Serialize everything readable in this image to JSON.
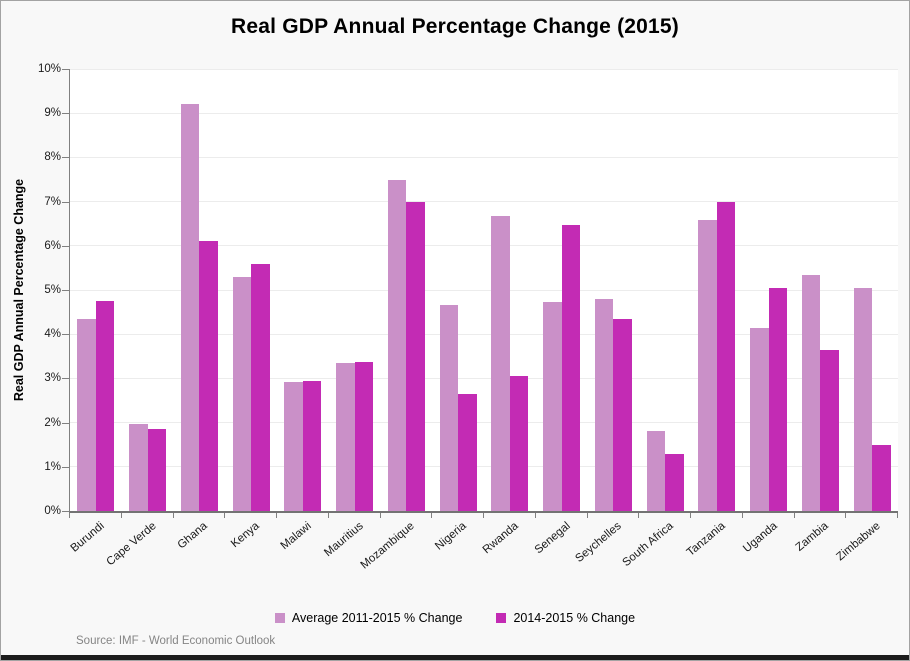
{
  "title": "Real GDP Annual Percentage Change (2015)",
  "source_note": "Source: IMF - World Economic Outlook",
  "chart_data": {
    "type": "bar",
    "title": "Real GDP Annual Percentage Change (2015)",
    "xlabel": "",
    "ylabel": "Real GDP Annual Percentage Change",
    "ylim": [
      0,
      10
    ],
    "yticks": [
      "0%",
      "1%",
      "2%",
      "3%",
      "4%",
      "5%",
      "6%",
      "7%",
      "8%",
      "9%",
      "10%"
    ],
    "grid": true,
    "legend_position": "bottom",
    "categories": [
      "Burundi",
      "Cape Verde",
      "Ghana",
      "Kenya",
      "Malawi",
      "Mauritius",
      "Mozambique",
      "Nigeria",
      "Rwanda",
      "Senegal",
      "Seychelles",
      "South Africa",
      "Tanzania",
      "Uganda",
      "Zambia",
      "Zimbabwe"
    ],
    "series": [
      {
        "name": "Average 2011-2015 % Change",
        "color": "#CA90C8",
        "values": [
          4.35,
          1.97,
          9.2,
          5.3,
          2.93,
          3.35,
          7.48,
          4.65,
          6.68,
          4.72,
          4.8,
          1.82,
          6.58,
          4.15,
          5.35,
          5.05
        ]
      },
      {
        "name": "2014-2015 % Change",
        "color": "#C32BB4",
        "values": [
          4.75,
          1.85,
          6.1,
          5.58,
          2.95,
          3.38,
          7.0,
          2.65,
          3.05,
          6.48,
          4.35,
          1.28,
          6.98,
          5.05,
          3.65,
          1.5
        ]
      }
    ]
  }
}
